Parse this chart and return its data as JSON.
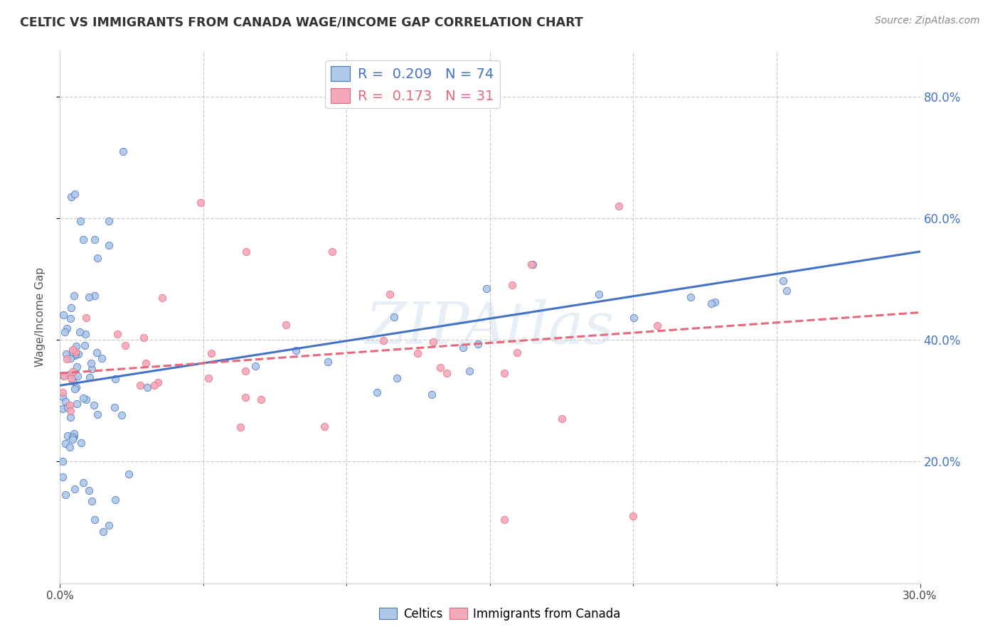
{
  "title": "CELTIC VS IMMIGRANTS FROM CANADA WAGE/INCOME GAP CORRELATION CHART",
  "source": "Source: ZipAtlas.com",
  "ylabel": "Wage/Income Gap",
  "xlim": [
    0.0,
    0.3
  ],
  "ylim": [
    0.0,
    0.875
  ],
  "yticks": [
    0.2,
    0.4,
    0.6,
    0.8
  ],
  "ytick_labels": [
    "20.0%",
    "40.0%",
    "60.0%",
    "80.0%"
  ],
  "series1_color": "#adc8e8",
  "series2_color": "#f5a8ba",
  "trendline1_color": "#4472c4",
  "trendline2_color": "#e8687a",
  "R1": 0.209,
  "N1": 74,
  "R2": 0.173,
  "N2": 31,
  "watermark": "ZIPAtlas",
  "legend1_label": "Celtics",
  "legend2_label": "Immigrants from Canada",
  "trend1_x0": 0.0,
  "trend1_y0": 0.325,
  "trend1_x1": 0.3,
  "trend1_y1": 0.545,
  "trend2_x0": 0.0,
  "trend2_y0": 0.345,
  "trend2_x1": 0.3,
  "trend2_y1": 0.445
}
